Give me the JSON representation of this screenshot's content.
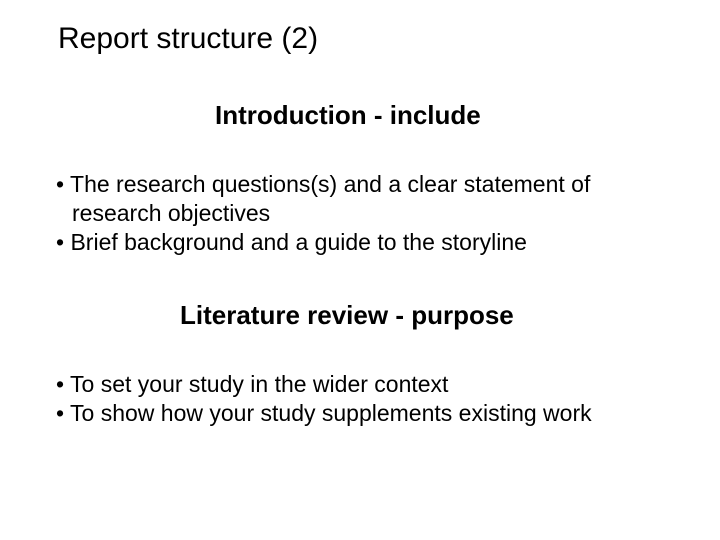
{
  "background_color": "#ffffff",
  "text_color": "#000000",
  "font_family": "Arial",
  "title": {
    "text": "Report structure (2)",
    "fontsize": 30,
    "weight": "normal"
  },
  "sections": [
    {
      "heading": "Introduction - include",
      "heading_fontsize": 26,
      "heading_weight": "bold",
      "bullets": [
        "The research questions(s) and a clear statement of research objectives",
        "Brief background and a guide to the storyline"
      ],
      "bullet_fontsize": 23
    },
    {
      "heading": "Literature review - purpose",
      "heading_fontsize": 26,
      "heading_weight": "bold",
      "bullets": [
        "To set your study in the wider context",
        "To show how your study supplements existing work"
      ],
      "bullet_fontsize": 23
    }
  ]
}
